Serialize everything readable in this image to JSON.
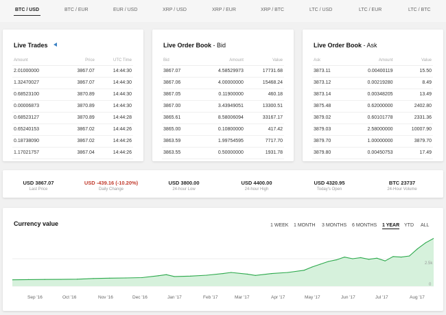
{
  "tabs": [
    {
      "label": "BTC / USD",
      "active": true
    },
    {
      "label": "BTC / EUR",
      "active": false
    },
    {
      "label": "EUR / USD",
      "active": false
    },
    {
      "label": "XRP / USD",
      "active": false
    },
    {
      "label": "XRP / EUR",
      "active": false
    },
    {
      "label": "XRP / BTC",
      "active": false
    },
    {
      "label": "LTC / USD",
      "active": false
    },
    {
      "label": "LTC / EUR",
      "active": false
    },
    {
      "label": "LTC / BTC",
      "active": false
    }
  ],
  "trades": {
    "title": "Live Trades",
    "headers": [
      "Amount",
      "Price",
      "UTC Time"
    ],
    "rows": [
      [
        "2.01000000",
        "3867.07",
        "14:44:30"
      ],
      [
        "1.32470027",
        "3867.07",
        "14:44:30"
      ],
      [
        "0.68523100",
        "3870.89",
        "14:44:30"
      ],
      [
        "0.00006873",
        "3870.89",
        "14:44:30"
      ],
      [
        "0.68523127",
        "3870.89",
        "14:44:28"
      ],
      [
        "0.65240153",
        "3867.02",
        "14:44:26"
      ],
      [
        "0.18738090",
        "3867.02",
        "14:44:26"
      ],
      [
        "1.17021757",
        "3867.04",
        "14:44:26"
      ]
    ]
  },
  "bid": {
    "title": "Live Order Book",
    "subtitle": "- Bid",
    "headers": [
      "Bid",
      "Amount",
      "Value"
    ],
    "rows": [
      [
        "3867.07",
        "4.58529973",
        "17731.68"
      ],
      [
        "3867.06",
        "4.00000000",
        "15468.24"
      ],
      [
        "3867.05",
        "0.11900000",
        "460.18"
      ],
      [
        "3867.00",
        "3.43949051",
        "13300.51"
      ],
      [
        "3865.61",
        "8.58006094",
        "33167.17"
      ],
      [
        "3865.00",
        "0.10800000",
        "417.42"
      ],
      [
        "3863.59",
        "1.99754595",
        "7717.70"
      ],
      [
        "3863.55",
        "0.50000000",
        "1931.78"
      ]
    ]
  },
  "ask": {
    "title": "Live Order Book",
    "subtitle": "- Ask",
    "headers": [
      "Ask",
      "Amount",
      "Value"
    ],
    "rows": [
      [
        "3873.11",
        "0.00400119",
        "15.50"
      ],
      [
        "3873.12",
        "0.00219280",
        "8.49"
      ],
      [
        "3873.14",
        "0.00348205",
        "13.49"
      ],
      [
        "3875.48",
        "0.62000000",
        "2402.80"
      ],
      [
        "3879.02",
        "0.60101778",
        "2331.36"
      ],
      [
        "3879.03",
        "2.58000000",
        "10007.90"
      ],
      [
        "3879.70",
        "1.00000000",
        "3879.70"
      ],
      [
        "3879.80",
        "0.00450753",
        "17.49"
      ]
    ]
  },
  "stats": [
    {
      "value": "USD 3867.07",
      "label": "Last Price",
      "negative": false
    },
    {
      "value": "USD -439.16 (-10.20%)",
      "label": "Daily Change",
      "negative": true
    },
    {
      "value": "USD 3800.00",
      "label": "24-hour Low",
      "negative": false
    },
    {
      "value": "USD 4400.00",
      "label": "24-hour High",
      "negative": false
    },
    {
      "value": "USD 4320.95",
      "label": "Today's Open",
      "negative": false
    },
    {
      "value": "BTC 23737",
      "label": "24-Hour Volume",
      "negative": false
    }
  ],
  "chart": {
    "title": "Currency value",
    "ranges": [
      {
        "label": "1 WEEK",
        "active": false
      },
      {
        "label": "1 MONTH",
        "active": false
      },
      {
        "label": "3 MONTHS",
        "active": false
      },
      {
        "label": "6 MONTHS",
        "active": false
      },
      {
        "label": "1 YEAR",
        "active": true
      },
      {
        "label": "YTD",
        "active": false
      },
      {
        "label": "ALL",
        "active": false
      }
    ],
    "line_color": "#2aa84a",
    "fill_color": "#d6f1dc"
  },
  "chart_data": {
    "type": "area",
    "xlabel": "",
    "ylabel": "",
    "x_ticks": [
      "Sep '16",
      "Oct '16",
      "Nov '16",
      "Dec '16",
      "Jan '17",
      "Feb '17",
      "Mar '17",
      "Apr '17",
      "May '17",
      "Jun '17",
      "Jul '17",
      "Aug '17"
    ],
    "y_ticks": [
      "0",
      "2.5k"
    ],
    "ylim": [
      0,
      4500
    ],
    "x": [
      "2016-08-25",
      "2016-09-08",
      "2016-09-22",
      "2016-10-06",
      "2016-10-20",
      "2016-11-03",
      "2016-11-17",
      "2016-12-01",
      "2016-12-15",
      "2016-12-29",
      "2017-01-05",
      "2017-01-12",
      "2017-01-26",
      "2017-02-09",
      "2017-02-23",
      "2017-03-02",
      "2017-03-16",
      "2017-03-23",
      "2017-04-06",
      "2017-04-20",
      "2017-05-04",
      "2017-05-11",
      "2017-05-18",
      "2017-05-25",
      "2017-06-01",
      "2017-06-08",
      "2017-06-15",
      "2017-06-22",
      "2017-06-29",
      "2017-07-06",
      "2017-07-13",
      "2017-07-20",
      "2017-07-27",
      "2017-08-03",
      "2017-08-10",
      "2017-08-17",
      "2017-08-24"
    ],
    "values": [
      580,
      600,
      610,
      620,
      640,
      700,
      730,
      750,
      780,
      950,
      1050,
      880,
      920,
      1000,
      1150,
      1250,
      1100,
      980,
      1150,
      1250,
      1450,
      1750,
      2000,
      2250,
      2400,
      2650,
      2500,
      2600,
      2450,
      2550,
      2300,
      2700,
      2650,
      2750,
      3400,
      3950,
      4350
    ]
  }
}
